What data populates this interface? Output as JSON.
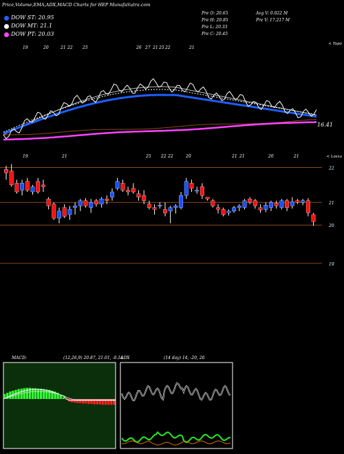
{
  "title": "Price,Volume,EMA,ADX,MACD Charts for HEP MunafaSutra.com",
  "legend": [
    {
      "label": "DOW ST: 20.95",
      "color": "#1f5fff"
    },
    {
      "label": "DOW MT: 21.1",
      "color": "#ffffff"
    },
    {
      "label": "DOW PT: 20.03",
      "color": "#ff44ff"
    }
  ],
  "quote": {
    "open": "Pre O: 20.65",
    "high": "Pre H: 20.85",
    "low": "Pre L: 20.33",
    "close": "Pre C: 20.45",
    "avg_volume": "Avg V: 0.022 M",
    "volume": "Pre V: 17.217 M"
  },
  "colors": {
    "bull": "#1a4fff",
    "bear": "#ff1010",
    "grid": "#8a4a1a",
    "ema_fast": "#1f5fff",
    "ema_long": "#ff44ff"
  },
  "chart_data": [
    {
      "type": "line",
      "title": "EMA overview",
      "top_label": "< Topo",
      "last_value": "16.41",
      "date_labels": [
        "19",
        "20",
        "21",
        "22",
        "25",
        "26",
        "27",
        "21",
        "25",
        "22",
        "21"
      ],
      "series": []
    },
    {
      "type": "candlestick",
      "top_label": "< Losxa",
      "date_labels": [
        "19",
        "21",
        "25",
        "22",
        "22",
        "20",
        "21",
        "21",
        "20",
        "21"
      ],
      "y_ticks": [
        "22",
        "21",
        "20",
        "19"
      ],
      "ylim": [
        18.6,
        22.45
      ],
      "series": [
        {
          "o": 21.95,
          "h": 22.05,
          "l": 21.65,
          "c": 21.85
        },
        {
          "o": 21.9,
          "h": 22.1,
          "l": 21.45,
          "c": 21.5
        },
        {
          "o": 21.55,
          "h": 21.65,
          "l": 21.25,
          "c": 21.3
        },
        {
          "o": 21.35,
          "h": 21.65,
          "l": 21.2,
          "c": 21.55
        },
        {
          "o": 21.6,
          "h": 21.7,
          "l": 21.3,
          "c": 21.35
        },
        {
          "o": 21.3,
          "h": 21.5,
          "l": 21.22,
          "c": 21.45
        },
        {
          "o": 21.6,
          "h": 21.7,
          "l": 21.25,
          "c": 21.3
        },
        {
          "o": 21.5,
          "h": 21.65,
          "l": 21.3,
          "c": 21.45
        },
        {
          "o": 21.1,
          "h": 21.15,
          "l": 20.8,
          "c": 20.9
        },
        {
          "o": 20.95,
          "h": 21.0,
          "l": 20.5,
          "c": 20.55
        },
        {
          "o": 20.55,
          "h": 20.85,
          "l": 20.4,
          "c": 20.75
        },
        {
          "o": 20.85,
          "h": 20.95,
          "l": 20.55,
          "c": 20.6
        },
        {
          "o": 20.65,
          "h": 20.9,
          "l": 20.5,
          "c": 20.8
        },
        {
          "o": 20.85,
          "h": 21.0,
          "l": 20.65,
          "c": 20.9
        },
        {
          "o": 20.9,
          "h": 21.1,
          "l": 20.75,
          "c": 21.05
        },
        {
          "o": 21.05,
          "h": 21.12,
          "l": 20.85,
          "c": 20.9
        },
        {
          "o": 20.85,
          "h": 21.1,
          "l": 20.7,
          "c": 21.0
        },
        {
          "o": 21.05,
          "h": 21.1,
          "l": 20.88,
          "c": 20.95
        },
        {
          "o": 20.95,
          "h": 21.15,
          "l": 20.85,
          "c": 21.1
        },
        {
          "o": 21.1,
          "h": 21.2,
          "l": 20.95,
          "c": 21.05
        },
        {
          "o": 21.15,
          "h": 21.4,
          "l": 21.05,
          "c": 21.3
        },
        {
          "o": 21.4,
          "h": 21.7,
          "l": 21.35,
          "c": 21.6
        },
        {
          "o": 21.55,
          "h": 21.65,
          "l": 21.3,
          "c": 21.35
        },
        {
          "o": 21.35,
          "h": 21.45,
          "l": 21.2,
          "c": 21.3
        },
        {
          "o": 21.4,
          "h": 21.55,
          "l": 21.25,
          "c": 21.3
        },
        {
          "o": 21.25,
          "h": 21.35,
          "l": 21.05,
          "c": 21.15
        },
        {
          "o": 21.2,
          "h": 21.35,
          "l": 20.95,
          "c": 21.05
        },
        {
          "o": 20.95,
          "h": 21.05,
          "l": 20.8,
          "c": 20.85
        },
        {
          "o": 20.85,
          "h": 20.95,
          "l": 20.65,
          "c": 20.8
        },
        {
          "o": 20.9,
          "h": 21.0,
          "l": 20.82,
          "c": 20.92
        },
        {
          "o": 20.8,
          "h": 21.0,
          "l": 20.6,
          "c": 20.7
        },
        {
          "o": 20.75,
          "h": 20.9,
          "l": 20.4,
          "c": 20.85
        },
        {
          "o": 20.85,
          "h": 20.95,
          "l": 20.68,
          "c": 20.9
        },
        {
          "o": 20.85,
          "h": 21.3,
          "l": 20.8,
          "c": 21.2
        },
        {
          "o": 21.2,
          "h": 21.7,
          "l": 21.1,
          "c": 21.6
        },
        {
          "o": 21.55,
          "h": 21.65,
          "l": 21.3,
          "c": 21.4
        },
        {
          "o": 21.35,
          "h": 21.45,
          "l": 21.25,
          "c": 21.35
        },
        {
          "o": 21.45,
          "h": 21.55,
          "l": 21.1,
          "c": 21.2
        },
        {
          "o": 21.15,
          "h": 21.15,
          "l": 21.05,
          "c": 21.1
        },
        {
          "o": 21.05,
          "h": 21.1,
          "l": 20.85,
          "c": 20.9
        },
        {
          "o": 20.85,
          "h": 20.95,
          "l": 20.68,
          "c": 20.8
        },
        {
          "o": 20.8,
          "h": 20.85,
          "l": 20.6,
          "c": 20.65
        },
        {
          "o": 20.7,
          "h": 20.8,
          "l": 20.62,
          "c": 20.75
        },
        {
          "o": 20.75,
          "h": 20.9,
          "l": 20.7,
          "c": 20.85
        },
        {
          "o": 20.85,
          "h": 20.95,
          "l": 20.75,
          "c": 20.9
        },
        {
          "o": 20.85,
          "h": 21.1,
          "l": 20.8,
          "c": 21.05
        },
        {
          "o": 21.1,
          "h": 21.15,
          "l": 20.95,
          "c": 21.0
        },
        {
          "o": 21.05,
          "h": 21.1,
          "l": 20.82,
          "c": 20.9
        },
        {
          "o": 20.85,
          "h": 20.95,
          "l": 20.7,
          "c": 20.78
        },
        {
          "o": 20.8,
          "h": 21.0,
          "l": 20.72,
          "c": 20.92
        },
        {
          "o": 20.85,
          "h": 21.05,
          "l": 20.75,
          "c": 21.0
        },
        {
          "o": 20.98,
          "h": 21.05,
          "l": 20.82,
          "c": 20.9
        },
        {
          "o": 20.85,
          "h": 21.1,
          "l": 20.8,
          "c": 21.05
        },
        {
          "o": 21.05,
          "h": 21.1,
          "l": 20.75,
          "c": 20.85
        },
        {
          "o": 20.9,
          "h": 21.15,
          "l": 20.82,
          "c": 21.02
        },
        {
          "o": 21.05,
          "h": 21.1,
          "l": 20.95,
          "c": 21.0
        },
        {
          "o": 21.0,
          "h": 21.1,
          "l": 20.92,
          "c": 21.05
        },
        {
          "o": 21.05,
          "h": 21.12,
          "l": 20.6,
          "c": 20.7
        },
        {
          "o": 20.65,
          "h": 20.7,
          "l": 20.33,
          "c": 20.45
        }
      ]
    },
    {
      "type": "bar",
      "title": "MACD",
      "label": "MACD:",
      "params": "(12,26,9) 20.87, 21.01, -0.14",
      "values": [
        0.12,
        0.15,
        0.18,
        0.2,
        0.22,
        0.24,
        0.25,
        0.26,
        0.27,
        0.27,
        0.26,
        0.26,
        0.25,
        0.25,
        0.24,
        0.23,
        0.22,
        0.2,
        0.18,
        0.15,
        0.1,
        0.04,
        -0.02,
        -0.06,
        -0.08,
        -0.09,
        -0.1,
        -0.1,
        -0.11,
        -0.11,
        -0.12,
        -0.12,
        -0.13,
        -0.13,
        -0.13,
        -0.14,
        -0.14,
        -0.14,
        -0.14,
        -0.14
      ]
    },
    {
      "type": "line",
      "title": "ADX",
      "label": "ADX",
      "params": "(14 day) 14, -20, 26"
    }
  ]
}
